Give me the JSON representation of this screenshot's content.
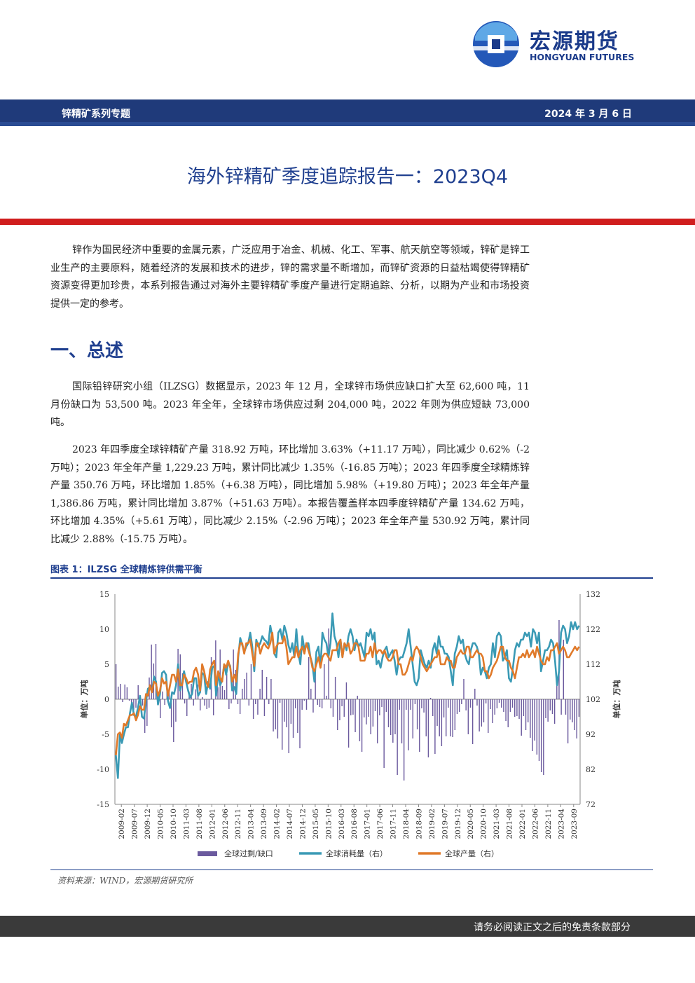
{
  "header": {
    "logo_cn": "宏源期货",
    "logo_en": "HONGYUAN FUTURES",
    "series_label": "锌精矿系列专题",
    "date": "2024 年 3 月 6 日"
  },
  "title": "海外锌精矿季度追踪报告一：2023Q4",
  "intro": "锌作为国民经济中重要的金属元素，广泛应用于冶金、机械、化工、军事、航天航空等领域，锌矿是锌工业生产的主要原料，随着经济的发展和技术的进步，锌的需求量不断增加，而锌矿资源的日益枯竭使得锌精矿资源变得更加珍贵，本系列报告通过对海外主要锌精矿季度产量进行定期追踪、分析，以期为产业和市场投资提供一定的参考。",
  "section1_heading": "一、总述",
  "para1": "国际铅锌研究小组（ILZSG）数据显示，2023 年 12 月，全球锌市场供应缺口扩大至 62,600 吨，11 月份缺口为 53,500 吨。2023 年全年，全球锌市场供应过剩 204,000 吨，2022 年则为供应短缺 73,000 吨。",
  "para2": "2023 年四季度全球锌精矿产量 318.92 万吨，环比增加 3.63%（+11.17 万吨），同比减少 0.62%（-2 万吨）；2023 年全年产量 1,229.23 万吨，累计同比减少 1.35%（-16.85 万吨）；2023 年四季度全球精炼锌产量 350.76 万吨，环比增加 1.85%（+6.38 万吨），同比增加 5.98%（+19.80 万吨）；2023 年全年产量 1,386.86 万吨，累计同比增加 3.87%（+51.63 万吨）。本报告覆盖样本四季度锌精矿产量 134.62 万吨，环比增加 4.35%（+5.61 万吨），同比减少 2.15%（-2.96 万吨）；2023 年全年产量 530.92 万吨，累计同比减少 2.88%（-15.75 万吨）。",
  "figure_title": "图表 1：ILZSG 全球精炼锌供需平衡",
  "source": "资料来源：WIND，宏源期货研究所",
  "footer": "请务必阅读正文之后的免责条款部分",
  "colors": {
    "bar": "#6b5a9e",
    "consumption": "#3a9ab5",
    "production": "#e07a2a",
    "brand": "#1f3f8f",
    "red": "#d01d1d"
  },
  "chart_data": {
    "type": "bar+line",
    "title": "",
    "left_axis": {
      "label": "单位：万吨",
      "range": [
        -15,
        15
      ],
      "ticks": [
        "15",
        "10",
        "5",
        "0",
        "-5",
        "-10",
        "-15"
      ]
    },
    "right_axis": {
      "label": "单位：万吨",
      "range": [
        72,
        132
      ],
      "ticks": [
        "132",
        "122",
        "112",
        "102",
        "92",
        "82",
        "72"
      ]
    },
    "x_tick_labels": [
      "2009-02",
      "2009-07",
      "2009-12",
      "2010-05",
      "2010-10",
      "2011-03",
      "2011-08",
      "2012-01",
      "2012-06",
      "2012-11",
      "2013-04",
      "2013-09",
      "2014-02",
      "2014-07",
      "2014-12",
      "2015-05",
      "2015-10",
      "2016-03",
      "2016-08",
      "2017-01",
      "2017-06",
      "2017-11",
      "2018-04",
      "2018-09",
      "2019-02",
      "2019-07",
      "2019-12",
      "2020-05",
      "2020-10",
      "2021-03",
      "2021-08",
      "2022-01",
      "2022-06",
      "2022-11",
      "2023-04",
      "2023-09"
    ],
    "series": [
      {
        "name": "全球过剩/缺口",
        "axis": "left",
        "type": "bar",
        "values": [
          5,
          1.8,
          2.2,
          -0.4,
          2.1,
          1.7,
          -0.2,
          -1.3,
          -1.5,
          -1.2,
          2,
          -0.3,
          -0.9,
          -4.8,
          -3.8,
          3.1,
          7.8,
          5.1,
          7.9,
          0.9,
          -2.7,
          1.1,
          -0.8,
          2.4,
          1.4,
          -4,
          -6.1,
          -3.2,
          7.2,
          6.4,
          3.7,
          -0.6,
          -2.4,
          1.1,
          2.2,
          -0.9,
          1.4,
          2.1,
          -1.6,
          0.3,
          -0.9,
          -1.4,
          -1.2,
          6,
          -2.3,
          8.4,
          1.7,
          7.1,
          1.9,
          1.3,
          3.6,
          -1.4,
          -0.6,
          7.1,
          4.2,
          -0.7,
          -2.1,
          1.5,
          2.9,
          3.8,
          -0.9,
          5,
          -2.8,
          -0.7,
          -2.2,
          1.5,
          4.2,
          -2.4,
          3.2,
          -0.7,
          2.9,
          -4.6,
          -4.3,
          -5.6,
          -0.5,
          -7.2,
          -3.2,
          -4,
          -7.7,
          -3.5,
          -5.5,
          -1.3,
          -4.8,
          -7,
          -1.5,
          -0.2,
          -1.5,
          6,
          1.5,
          -1.9,
          5.3,
          -0.8,
          -1.1,
          -1.3,
          5,
          0.5,
          10.1,
          -1.3,
          -2.5,
          3.2,
          -4.4,
          -3,
          -1,
          -2.5,
          2.4,
          -6.9,
          -2.3,
          -2.2,
          -4.7,
          0.5,
          -6,
          -7.5,
          -2.6,
          -3.6,
          -2.5,
          -5,
          -3.9,
          -1.7,
          -6.3,
          -2.3,
          -1.1,
          -9.8,
          -1.8,
          -4,
          -5.1,
          -6.2,
          -5,
          -10.8,
          -1.5,
          -6.3,
          -11.6,
          -1.5,
          -7.3,
          -1.5,
          -5.6,
          -0.7,
          -4.3,
          -7.5,
          -1.3,
          -1.9,
          -5.3,
          -8.3,
          0.2,
          -2.4,
          -7.8,
          -3.8,
          -5.3,
          -6.7,
          -2.6,
          -5.3,
          -1.2,
          -5.3,
          -5.4,
          -4.4,
          -2.1,
          -1.8,
          -0.7,
          2.9,
          -1.6,
          -5,
          -1.2,
          -6.4,
          1.5,
          -0.9,
          -4.6,
          -3.9,
          -3.3,
          -0.6,
          -4.8,
          -1.4,
          -3.4,
          -2.2,
          -1.3,
          -0.5,
          -1.2,
          -1.8,
          -3.1,
          -4,
          -1.8,
          -1.2,
          -2.5,
          -2.4,
          -2.8,
          -5.2,
          -2.4,
          -4.4,
          -3.3,
          -5.5,
          -7.4,
          -5.9,
          -7.9,
          -8.8,
          -10.4,
          -10.8,
          -2.7,
          -3.2,
          -1.6,
          -2.1,
          -3.5,
          2.2,
          11.3,
          -2.2,
          8.5,
          -2.2,
          -6.3,
          -2.9,
          -3.3,
          -4.4,
          -5.6,
          -2.5
        ]
      },
      {
        "name": "全球消耗量（右）",
        "axis": "right",
        "type": "line",
        "values": [
          86,
          79.5,
          92,
          89.5,
          92,
          94,
          94,
          98,
          101,
          97.5,
          97,
          99.5,
          103,
          97,
          96.5,
          101.5,
          105,
          105.5,
          104,
          108.5,
          107,
          100.5,
          103.5,
          109.5,
          110,
          109,
          101.5,
          99.5,
          104,
          103.5,
          106,
          112,
          104.5,
          107,
          110,
          107,
          104.5,
          102.5,
          103.5,
          108,
          108,
          103,
          104,
          109.5,
          109,
          103.5,
          107,
          105,
          111,
          111.5,
          103,
          109.5,
          106,
          107.5,
          112,
          109,
          112.5,
          111.5,
          104.5,
          105.5,
          103.5,
          114,
          119.5,
          117.5,
          115.5,
          117,
          118,
          121,
          117,
          110,
          119,
          117,
          118,
          120,
          119,
          118.5,
          117.5,
          123,
          120,
          115,
          114,
          121,
          122,
          119,
          123,
          121,
          117.5,
          115.5,
          118,
          114,
          122,
          115,
          112,
          120,
          116,
          118,
          118,
          114,
          112,
          107,
          115.5,
          117,
          111,
          121,
          119,
          118,
          114,
          118,
          126.5,
          120,
          118,
          114,
          119,
          114,
          118,
          116,
          120,
          122,
          120,
          116,
          119,
          117,
          118,
          116,
          114,
          121,
          120,
          122,
          119,
          121,
          112,
          113,
          111,
          114,
          116,
          117,
          114,
          115,
          116,
          113,
          109,
          113,
          114,
          114,
          116,
          118,
          122,
          117,
          112,
          107,
          106,
          108,
          116,
          114,
          112,
          111,
          113,
          111,
          116,
          118,
          115,
          120,
          117,
          117,
          115,
          115,
          114,
          110,
          106,
          115,
          117,
          120,
          118,
          119,
          115,
          113,
          112,
          116,
          118,
          118,
          117,
          115,
          109,
          111,
          110,
          108,
          111,
          112,
          118,
          114,
          120,
          121,
          120,
          113,
          114,
          116,
          108,
          107,
          111,
          116,
          118,
          117,
          119,
          119,
          121,
          120,
          121,
          117,
          122,
          121,
          118,
          121,
          110,
          113,
          116,
          116,
          117,
          119,
          118,
          113,
          106,
          110,
          121,
          123,
          122,
          118,
          120,
          124,
          122,
          124,
          122,
          123
        ]
      },
      {
        "name": "全球产量（右）",
        "axis": "right",
        "type": "line",
        "values": [
          86,
          92,
          92.5,
          91,
          95,
          94.5,
          96,
          97.5,
          97.5,
          98,
          96,
          97.5,
          100,
          99,
          99,
          103.5,
          103,
          106,
          104,
          107,
          106.5,
          103,
          104.5,
          108,
          106.5,
          107,
          103,
          106,
          109,
          109,
          107,
          110.5,
          106,
          106,
          109,
          108,
          106.5,
          107,
          107,
          110,
          111,
          109,
          104.5,
          112,
          110,
          107,
          105.5,
          110.5,
          112,
          113,
          106,
          110,
          108,
          107,
          112,
          111,
          113,
          111,
          107,
          109,
          107,
          115,
          118,
          118,
          115,
          118,
          118,
          119,
          115,
          111.5,
          118,
          118,
          115,
          117,
          118,
          117,
          116.5,
          118,
          121,
          115,
          117,
          118,
          118,
          118,
          120,
          117,
          112,
          113,
          114,
          114,
          117,
          114,
          116,
          117,
          115,
          118,
          116,
          114,
          111,
          110,
          112,
          114,
          111,
          114,
          115,
          115,
          114,
          113,
          116,
          116,
          116,
          118,
          119,
          114,
          118,
          117,
          118,
          115,
          116,
          118,
          118,
          117,
          113,
          113,
          113,
          115,
          115,
          117,
          114,
          118,
          115,
          116,
          116,
          115,
          116,
          114,
          113,
          113,
          114,
          116,
          116,
          112,
          112,
          109,
          109,
          110,
          112,
          114,
          113,
          116,
          117,
          116,
          114,
          112,
          111,
          110,
          111,
          112,
          113,
          114,
          114,
          116,
          112,
          112,
          112,
          114,
          113,
          113,
          111,
          111,
          114,
          115,
          116,
          115,
          115,
          117,
          117,
          114,
          114,
          115,
          116,
          115,
          115,
          114,
          110,
          110,
          108,
          109,
          111,
          112,
          113,
          115,
          117,
          117,
          114,
          113,
          113,
          111,
          110,
          108,
          111,
          114,
          114,
          115,
          114,
          116,
          114,
          115,
          116,
          114,
          117,
          115,
          113,
          112,
          112,
          114,
          113,
          116,
          116,
          117,
          118,
          115,
          116,
          117,
          116,
          114,
          114,
          115,
          116,
          117,
          116,
          117
        ]
      }
    ]
  }
}
